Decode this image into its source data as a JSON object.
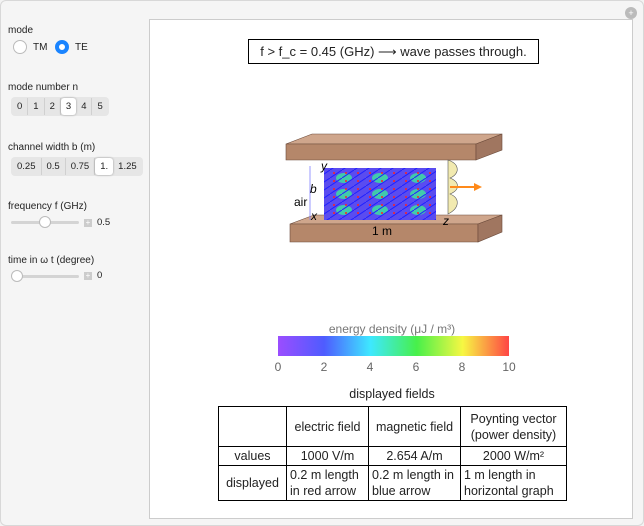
{
  "controls": {
    "mode": {
      "label": "mode",
      "options": [
        "TM",
        "TE"
      ],
      "selected": "TE"
    },
    "mode_number": {
      "label": "mode number n",
      "options": [
        "0",
        "1",
        "2",
        "3",
        "4",
        "5"
      ],
      "selected": "3"
    },
    "channel_width": {
      "label": "channel width b (m)",
      "options": [
        "0.25",
        "0.5",
        "0.75",
        "1.",
        "1.25"
      ],
      "selected": "1."
    },
    "frequency": {
      "label": "frequency f (GHz)",
      "value": "0.5",
      "fraction": 0.4
    },
    "time": {
      "label": "time in ω t (degree)",
      "value": "0",
      "fraction": 0.0
    }
  },
  "plot": {
    "condition": "f > f_c = 0.45 (GHz) ⟶ wave passes through.",
    "axis_labels": {
      "y": "y",
      "x": "x",
      "z": "z",
      "b": "b",
      "air": "air",
      "length": "1 m"
    },
    "colorbar": {
      "title": "energy density (μJ / m³)",
      "ticks": [
        "0",
        "2",
        "4",
        "6",
        "8",
        "10"
      ],
      "range": [
        0,
        10
      ]
    },
    "colors": {
      "plate": "#b5876a",
      "electric": "#ff2020",
      "magnetic": "#2020ff",
      "poynting": "#ff8a1a"
    }
  },
  "table": {
    "title": "displayed fields",
    "headers": [
      "",
      "electric field",
      "magnetic field",
      "Poynting vector (power density)"
    ],
    "rows": [
      [
        "values",
        "1000 V/m",
        "2.654 A/m",
        "2000 W/m²"
      ],
      [
        "displayed",
        "0.2 m length in red arrow",
        "0.2 m length in blue arrow",
        "1 m length in horizontal graph"
      ]
    ]
  }
}
